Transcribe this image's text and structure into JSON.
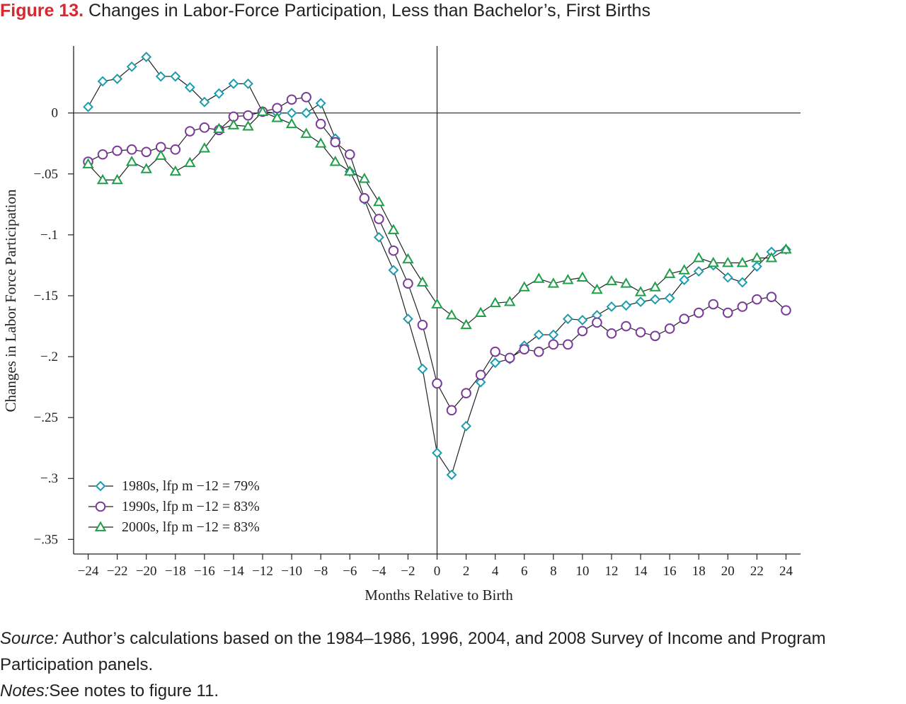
{
  "header": {
    "figure_number": "Figure 13.",
    "title": "Changes in Labor-Force Participation, Less than Bachelor’s, First Births"
  },
  "chart_data": {
    "type": "line",
    "title": "Changes in Labor-Force Participation, Less than Bachelor’s, First Births",
    "xlabel": "Months Relative to Birth",
    "ylabel": "Changes in Labor Force Participation",
    "xlim": [
      -25,
      25
    ],
    "ylim": [
      -0.362,
      0.055
    ],
    "x_ticks": [
      -24,
      -22,
      -20,
      -18,
      -16,
      -14,
      -12,
      -10,
      -8,
      -6,
      -4,
      -2,
      0,
      2,
      4,
      6,
      8,
      10,
      12,
      14,
      16,
      18,
      20,
      22,
      24
    ],
    "x_tick_labels": [
      "−24",
      "−22",
      "−20",
      "−18",
      "−16",
      "−14",
      "−12",
      "−10",
      "−8",
      "−6",
      "−4",
      "−2",
      "0",
      "2",
      "4",
      "6",
      "8",
      "10",
      "12",
      "14",
      "16",
      "18",
      "20",
      "22",
      "24"
    ],
    "y_ticks": [
      0,
      -0.05,
      -0.1,
      -0.15,
      -0.2,
      -0.25,
      -0.3,
      -0.35
    ],
    "y_tick_labels": [
      "0",
      "−.05",
      "−.1",
      "−.15",
      "−.2",
      "−.25",
      "−.3",
      "−.35"
    ],
    "reference_lines": {
      "horizontal_y": 0,
      "vertical_x": 0
    },
    "grid": false,
    "legend_position": "bottom-left",
    "x": [
      -24,
      -23,
      -22,
      -21,
      -20,
      -19,
      -18,
      -17,
      -16,
      -15,
      -14,
      -13,
      -12,
      -11,
      -10,
      -9,
      -8,
      -7,
      -6,
      -5,
      -4,
      -3,
      -2,
      -1,
      0,
      1,
      2,
      3,
      4,
      5,
      6,
      7,
      8,
      9,
      10,
      11,
      12,
      13,
      14,
      15,
      16,
      17,
      18,
      19,
      20,
      21,
      22,
      23,
      24
    ],
    "series": [
      {
        "name": "1980s, lfp m −12 = 79%",
        "marker": "diamond",
        "color": "#1a9db0",
        "values": [
          0.005,
          0.026,
          0.028,
          0.038,
          0.046,
          0.03,
          0.03,
          0.021,
          0.009,
          0.016,
          0.024,
          0.024,
          0.001,
          0.0,
          0.0,
          0.0,
          0.008,
          -0.021,
          -0.048,
          -0.071,
          -0.102,
          -0.129,
          -0.169,
          -0.21,
          -0.279,
          -0.297,
          -0.257,
          -0.221,
          -0.205,
          -0.202,
          -0.191,
          -0.182,
          -0.182,
          -0.169,
          -0.17,
          -0.166,
          -0.159,
          -0.158,
          -0.155,
          -0.153,
          -0.152,
          -0.137,
          -0.13,
          -0.125,
          -0.135,
          -0.139,
          -0.126,
          -0.114,
          -0.112
        ]
      },
      {
        "name": "1990s, lfp m −12 = 83%",
        "marker": "circle",
        "color": "#7a3a9a",
        "values": [
          -0.04,
          -0.034,
          -0.031,
          -0.03,
          -0.032,
          -0.028,
          -0.03,
          -0.015,
          -0.012,
          -0.014,
          -0.003,
          -0.002,
          0.001,
          0.004,
          0.011,
          0.013,
          -0.009,
          -0.024,
          -0.034,
          -0.07,
          -0.087,
          -0.113,
          -0.14,
          -0.174,
          -0.222,
          -0.244,
          -0.23,
          -0.215,
          -0.196,
          -0.201,
          -0.194,
          -0.196,
          -0.19,
          -0.19,
          -0.179,
          -0.172,
          -0.181,
          -0.175,
          -0.18,
          -0.183,
          -0.177,
          -0.169,
          -0.164,
          -0.157,
          -0.164,
          -0.159,
          -0.153,
          -0.151,
          -0.162
        ]
      },
      {
        "name": "2000s, lfp m −12 = 83%",
        "marker": "triangle",
        "color": "#1f9e4a",
        "values": [
          -0.042,
          -0.055,
          -0.055,
          -0.04,
          -0.046,
          -0.035,
          -0.048,
          -0.041,
          -0.029,
          -0.013,
          -0.01,
          -0.011,
          0.001,
          -0.004,
          -0.009,
          -0.017,
          -0.025,
          -0.04,
          -0.048,
          -0.054,
          -0.073,
          -0.096,
          -0.12,
          -0.139,
          -0.157,
          -0.166,
          -0.174,
          -0.164,
          -0.156,
          -0.155,
          -0.143,
          -0.136,
          -0.14,
          -0.137,
          -0.135,
          -0.145,
          -0.138,
          -0.14,
          -0.147,
          -0.143,
          -0.132,
          -0.129,
          -0.119,
          -0.123,
          -0.123,
          -0.123,
          -0.119,
          -0.119,
          -0.112
        ]
      }
    ]
  },
  "footer": {
    "source_label": "Source:",
    "source_text": " Author’s calculations based on the 1984–1986, 1996, 2004, and 2008 Survey of Income and Program Participation panels.",
    "notes_label": "Notes:",
    "notes_text": "See notes to figure 11."
  }
}
